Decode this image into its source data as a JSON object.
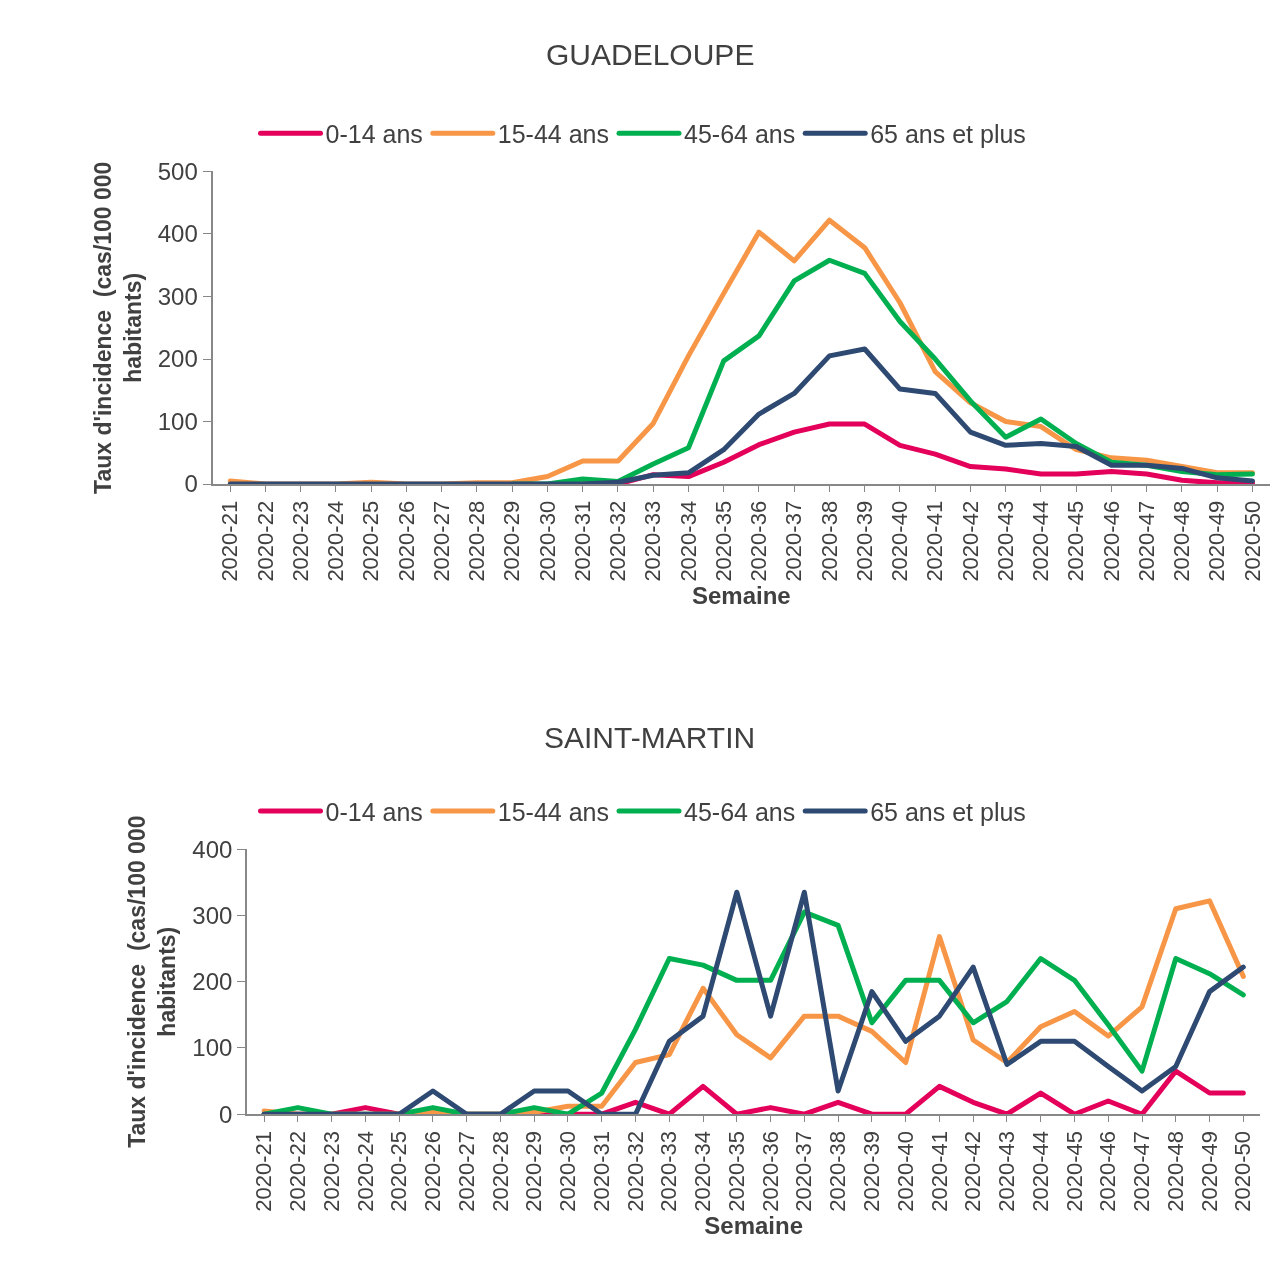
{
  "chart_data": [
    {
      "type": "line",
      "title": "GUADELOUPE",
      "xlabel": "Semaine",
      "ylabel": "Taux d'incidence  (cas/100 000\nhabitants)",
      "categories": [
        "2020-21",
        "2020-22",
        "2020-23",
        "2020-24",
        "2020-25",
        "2020-26",
        "2020-27",
        "2020-28",
        "2020-29",
        "2020-30",
        "2020-31",
        "2020-32",
        "2020-33",
        "2020-34",
        "2020-35",
        "2020-36",
        "2020-37",
        "2020-38",
        "2020-39",
        "2020-40",
        "2020-41",
        "2020-42",
        "2020-43",
        "2020-44",
        "2020-45",
        "2020-46",
        "2020-47",
        "2020-48",
        "2020-49",
        "2020-50"
      ],
      "ylim": [
        0,
        500
      ],
      "yticks": [
        0,
        100,
        200,
        300,
        400,
        500
      ],
      "legend": "top",
      "series": [
        {
          "name": "0-14 ans",
          "color": "#e4005a",
          "values": [
            null,
            null,
            null,
            null,
            null,
            null,
            null,
            null,
            null,
            null,
            0,
            0,
            15,
            12,
            35,
            63,
            83,
            96,
            96,
            62,
            48,
            28,
            24,
            16,
            16,
            20,
            16,
            6,
            2,
            2
          ]
        },
        {
          "name": "15-44 ans",
          "color": "#f79646",
          "values": [
            5,
            0,
            0,
            0,
            3,
            0,
            0,
            2,
            2,
            12,
            37,
            37,
            97,
            205,
            305,
            403,
            357,
            422,
            378,
            290,
            180,
            130,
            100,
            92,
            55,
            42,
            38,
            28,
            18,
            18
          ]
        },
        {
          "name": "45-64 ans",
          "color": "#00b050",
          "values": [
            null,
            null,
            null,
            null,
            null,
            null,
            null,
            null,
            0,
            0,
            8,
            4,
            32,
            58,
            197,
            237,
            325,
            358,
            337,
            260,
            200,
            133,
            75,
            104,
            65,
            35,
            30,
            20,
            15,
            16
          ]
        },
        {
          "name": "65 ans et plus",
          "color": "#2e4a72",
          "values": [
            0,
            0,
            0,
            0,
            0,
            0,
            0,
            0,
            0,
            0,
            0,
            3,
            14,
            18,
            55,
            112,
            145,
            205,
            216,
            152,
            145,
            83,
            62,
            65,
            60,
            30,
            30,
            25,
            10,
            5
          ]
        }
      ]
    },
    {
      "type": "line",
      "title": "SAINT-MARTIN",
      "xlabel": "Semaine",
      "ylabel": "Taux d'incidence  (cas/100 000\nhabitants)",
      "categories": [
        "2020-21",
        "2020-22",
        "2020-23",
        "2020-24",
        "2020-25",
        "2020-26",
        "2020-27",
        "2020-28",
        "2020-29",
        "2020-30",
        "2020-31",
        "2020-32",
        "2020-33",
        "2020-34",
        "2020-35",
        "2020-36",
        "2020-37",
        "2020-38",
        "2020-39",
        "2020-40",
        "2020-41",
        "2020-42",
        "2020-43",
        "2020-44",
        "2020-45",
        "2020-46",
        "2020-47",
        "2020-48",
        "2020-49",
        "2020-50"
      ],
      "ylim": [
        0,
        400
      ],
      "yticks": [
        0,
        100,
        200,
        300,
        400
      ],
      "legend": "top",
      "series": [
        {
          "name": "0-14 ans",
          "color": "#e4005a",
          "values": [
            0,
            0,
            0,
            10,
            0,
            0,
            0,
            0,
            0,
            0,
            0,
            18,
            0,
            42,
            0,
            10,
            0,
            18,
            0,
            0,
            42,
            18,
            0,
            32,
            0,
            20,
            0,
            65,
            32,
            32
          ]
        },
        {
          "name": "15-44 ans",
          "color": "#f79646",
          "values": [
            5,
            0,
            0,
            0,
            0,
            3,
            0,
            0,
            3,
            12,
            12,
            78,
            90,
            190,
            120,
            85,
            148,
            148,
            125,
            78,
            268,
            112,
            78,
            132,
            155,
            118,
            162,
            310,
            322,
            208
          ]
        },
        {
          "name": "45-64 ans",
          "color": "#00b050",
          "values": [
            0,
            10,
            0,
            0,
            0,
            10,
            0,
            0,
            10,
            0,
            32,
            128,
            235,
            225,
            202,
            202,
            305,
            285,
            138,
            202,
            202,
            138,
            170,
            235,
            202,
            135,
            65,
            235,
            212,
            180
          ]
        },
        {
          "name": "65 ans et plus",
          "color": "#2e4a72",
          "values": [
            0,
            0,
            0,
            0,
            0,
            35,
            0,
            0,
            35,
            35,
            0,
            0,
            110,
            148,
            335,
            148,
            335,
            35,
            185,
            110,
            148,
            222,
            75,
            110,
            110,
            72,
            35,
            72,
            185,
            222
          ]
        }
      ]
    }
  ]
}
